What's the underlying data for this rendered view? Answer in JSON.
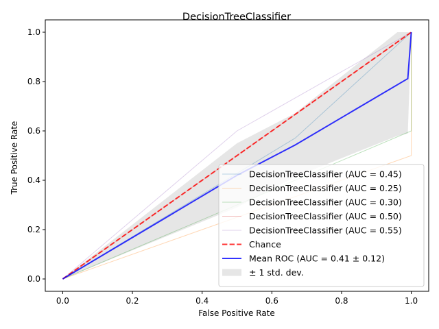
{
  "chart_data": {
    "type": "line",
    "title": "DecisionTreeClassifier",
    "xlabel": "False Positive Rate",
    "ylabel": "True Positive Rate",
    "xlim": [
      -0.05,
      1.05
    ],
    "ylim": [
      -0.05,
      1.05
    ],
    "xticks": [
      "0.0",
      "0.2",
      "0.4",
      "0.6",
      "0.8",
      "1.0"
    ],
    "yticks": [
      "0.0",
      "0.2",
      "0.4",
      "0.6",
      "0.8",
      "1.0"
    ],
    "grid": false,
    "legend_position": "lower-right",
    "series": [
      {
        "name": "DecisionTreeClassifier (AUC = 0.45)",
        "color": "#1f77b4",
        "x": [
          0,
          0.667,
          1
        ],
        "y": [
          0,
          0.571,
          1
        ]
      },
      {
        "name": "DecisionTreeClassifier (AUC = 0.25)",
        "color": "#ff7f0e",
        "x": [
          0,
          1,
          1
        ],
        "y": [
          0,
          0.5,
          1
        ]
      },
      {
        "name": "DecisionTreeClassifier (AUC = 0.30)",
        "color": "#2ca02c",
        "x": [
          0,
          1,
          1
        ],
        "y": [
          0,
          0.6,
          1
        ]
      },
      {
        "name": "DecisionTreeClassifier (AUC = 0.50)",
        "color": "#d62728",
        "x": [
          0,
          1
        ],
        "y": [
          0,
          1
        ]
      },
      {
        "name": "DecisionTreeClassifier (AUC = 0.55)",
        "color": "#9467bd",
        "x": [
          0,
          0.5,
          1
        ],
        "y": [
          0,
          0.6,
          1
        ]
      }
    ],
    "chance": {
      "name": "Chance",
      "color": "#ff0000",
      "x": [
        0,
        1
      ],
      "y": [
        0,
        1
      ]
    },
    "mean": {
      "name": "Mean ROC (AUC = 0.41 ± 0.12)",
      "color": "#0000ff",
      "x": [
        0,
        0.5,
        0.667,
        0.99,
        1
      ],
      "y": [
        0,
        0.42,
        0.543,
        0.812,
        1
      ]
    },
    "std_band": {
      "name": "± 1 std. dev.",
      "color": "#808080",
      "x": [
        0,
        0.5,
        0.667,
        0.96,
        0.99,
        1
      ],
      "upper": [
        0,
        0.55,
        0.672,
        1.0,
        1.0,
        1.0
      ],
      "lower": [
        0,
        0.29,
        0.414,
        0.58,
        0.59,
        1.0
      ]
    }
  }
}
